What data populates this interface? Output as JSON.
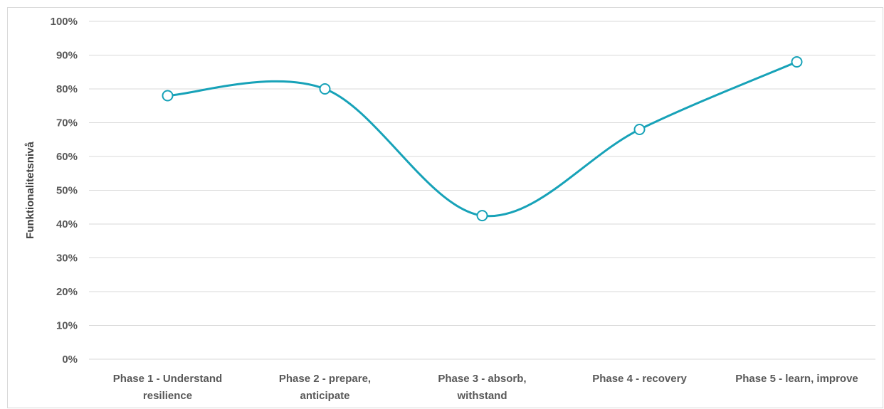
{
  "chart_data": {
    "type": "line",
    "categories": [
      [
        "Phase 1 - Understand",
        "resilience"
      ],
      [
        "Phase 2  - prepare,",
        "anticipate"
      ],
      [
        "Phase 3 - absorb,",
        "withstand"
      ],
      [
        "Phase 4 - recovery"
      ],
      [
        "Phase 5 - learn, improve"
      ]
    ],
    "series": [
      {
        "values": [
          78,
          80,
          42.5,
          68,
          88
        ],
        "color": "#17a2b8"
      }
    ],
    "ylabel": "Funktionalitetsnivå",
    "yticks": [
      "0%",
      "10%",
      "20%",
      "30%",
      "40%",
      "50%",
      "60%",
      "70%",
      "80%",
      "90%",
      "100%"
    ],
    "ylim": [
      0,
      100
    ],
    "smooth": true,
    "markers": "hollow-circle",
    "grid": true,
    "legend": "none"
  }
}
